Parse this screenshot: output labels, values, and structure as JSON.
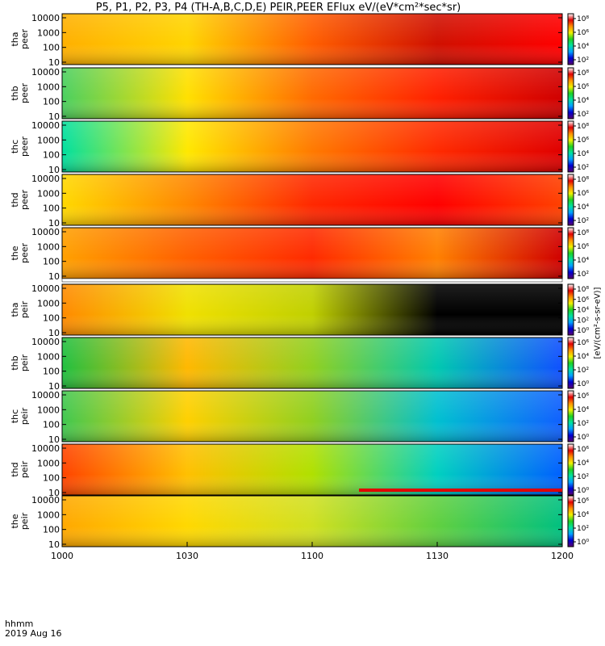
{
  "chart_data": {
    "type": "heatmap",
    "title": "P5, P1, P2, P3, P4 (TH-A,B,C,D,E) PEIR,PEER EFlux eV/(eV*cm²*sec*sr)",
    "x_label_line1": "hhmm",
    "x_label_line2": "2019 Aug 16",
    "x_ticks": [
      "1000",
      "1030",
      "1100",
      "1130",
      "1200"
    ],
    "y_ticks": [
      "10",
      "100",
      "1000",
      "10000"
    ],
    "colorbar_label": "[eV/(cm²-s-sr-eV)]",
    "color_scale": [
      "#5a0070",
      "#0000d0",
      "#00a0ff",
      "#00e0a0",
      "#20d020",
      "#f0f000",
      "#ff9000",
      "#e00000",
      "#ffffff"
    ],
    "panels": [
      {
        "probe": "tha",
        "species": "peer",
        "name_line1": "tha",
        "name_line2": "peer",
        "cbar_ticks": [
          "10²",
          "10⁴",
          "10⁶",
          "10⁸"
        ],
        "colors": [
          "#ffb000",
          "#ffd400",
          "#ff5e00",
          "#d01000",
          "#ff0000"
        ]
      },
      {
        "probe": "thb",
        "species": "peer",
        "name_line1": "thb",
        "name_line2": "peer",
        "cbar_ticks": [
          "10²",
          "10⁴",
          "10⁶",
          "10⁸"
        ],
        "colors": [
          "#4ad060",
          "#ffe000",
          "#ff6a00",
          "#ff2000",
          "#d00000"
        ]
      },
      {
        "probe": "thc",
        "species": "peer",
        "name_line1": "thc",
        "name_line2": "peer",
        "cbar_ticks": [
          "10²",
          "10⁴",
          "10⁶",
          "10⁸"
        ],
        "colors": [
          "#00e0a0",
          "#ffe800",
          "#ff7a00",
          "#ff2a00",
          "#e00000"
        ]
      },
      {
        "probe": "thd",
        "species": "peer",
        "name_line1": "thd",
        "name_line2": "peer",
        "cbar_ticks": [
          "10²",
          "10⁴",
          "10⁶",
          "10⁸"
        ],
        "colors": [
          "#ffd800",
          "#ff8800",
          "#ff2800",
          "#ff0000",
          "#ff4000"
        ]
      },
      {
        "probe": "the",
        "species": "peer",
        "name_line1": "the",
        "name_line2": "peer",
        "cbar_ticks": [
          "10²",
          "10⁴",
          "10⁶",
          "10⁸"
        ],
        "colors": [
          "#ffa000",
          "#ff6000",
          "#ff2a00",
          "#ff8000",
          "#d00000"
        ]
      },
      {
        "probe": "tha",
        "species": "peir",
        "name_line1": "tha",
        "name_line2": "peir",
        "cbar_ticks": [
          "10⁰",
          "10²",
          "10⁴",
          "10⁶",
          "10⁸"
        ],
        "colors": [
          "#ff8a00",
          "#f0e000",
          "#c0d000",
          "#000000",
          "#000000"
        ]
      },
      {
        "probe": "thb",
        "species": "peir",
        "name_line1": "thb",
        "name_line2": "peir",
        "cbar_ticks": [
          "10⁰",
          "10²",
          "10⁴",
          "10⁶"
        ],
        "colors": [
          "#20c040",
          "#ffb800",
          "#90d020",
          "#00c8b0",
          "#1050ff"
        ]
      },
      {
        "probe": "thc",
        "species": "peir",
        "name_line1": "thc",
        "name_line2": "peir",
        "cbar_ticks": [
          "10⁰",
          "10²",
          "10⁴",
          "10⁶"
        ],
        "colors": [
          "#40c850",
          "#ffd000",
          "#90d020",
          "#00c0d0",
          "#1060ff"
        ]
      },
      {
        "probe": "thd",
        "species": "peir",
        "name_line1": "thd",
        "name_line2": "peir",
        "cbar_ticks": [
          "10⁰",
          "10²",
          "10⁴",
          "10⁶"
        ],
        "colors": [
          "#ff4400",
          "#ffc000",
          "#b0e000",
          "#00d0c0",
          "#0060ff"
        ]
      },
      {
        "probe": "the",
        "species": "peir",
        "name_line1": "the",
        "name_line2": "peir",
        "cbar_ticks": [
          "10⁰",
          "10²",
          "10⁴",
          "10⁶"
        ],
        "colors": [
          "#ffa800",
          "#ffd800",
          "#d0e020",
          "#60d040",
          "#00c080"
        ]
      }
    ]
  }
}
